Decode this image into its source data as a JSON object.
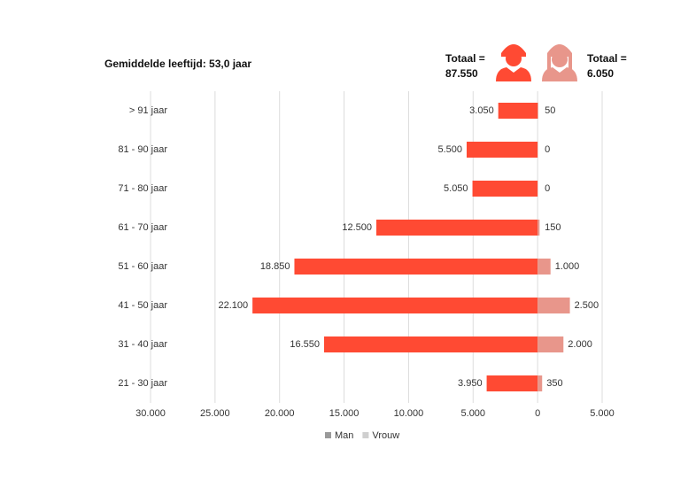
{
  "chart_data": {
    "type": "pyramid",
    "annotation": "Gemiddelde leeftijd: 53,0 jaar",
    "totals": [
      {
        "label": "Totaal =",
        "value": "87.550"
      },
      {
        "label": "Totaal =",
        "value": "6.050"
      }
    ],
    "categories": [
      "> 91 jaar",
      "81 - 90 jaar",
      "71 - 80 jaar",
      "61 - 70 jaar",
      "51 - 60 jaar",
      "41 - 50 jaar",
      "31 - 40 jaar",
      "21 - 30 jaar"
    ],
    "series": [
      {
        "name": "Man",
        "color": "#ff4a33",
        "legend_color": "#9a9a9a",
        "values": [
          3050,
          5500,
          5050,
          12500,
          18850,
          22100,
          16550,
          3950
        ],
        "value_labels": [
          "3.050",
          "5.500",
          "5.050",
          "12.500",
          "18.850",
          "22.100",
          "16.550",
          "3.950"
        ]
      },
      {
        "name": "Vrouw",
        "color": "#e8968b",
        "legend_color": "#cfcfcf",
        "values": [
          50,
          0,
          0,
          150,
          1000,
          2500,
          2000,
          350
        ],
        "value_labels": [
          "50",
          "0",
          "0",
          "150",
          "1.000",
          "2.500",
          "2.000",
          "350"
        ]
      }
    ],
    "xlim": [
      -30000,
      5000
    ],
    "xticks": [
      {
        "value": -30000,
        "label": "30.000"
      },
      {
        "value": -25000,
        "label": "25.000"
      },
      {
        "value": -20000,
        "label": "20.000"
      },
      {
        "value": -15000,
        "label": "15.000"
      },
      {
        "value": -10000,
        "label": "10.000"
      },
      {
        "value": -5000,
        "label": "5.000"
      },
      0,
      {
        "value": 5000,
        "label": "5.000"
      }
    ],
    "grid": true
  }
}
